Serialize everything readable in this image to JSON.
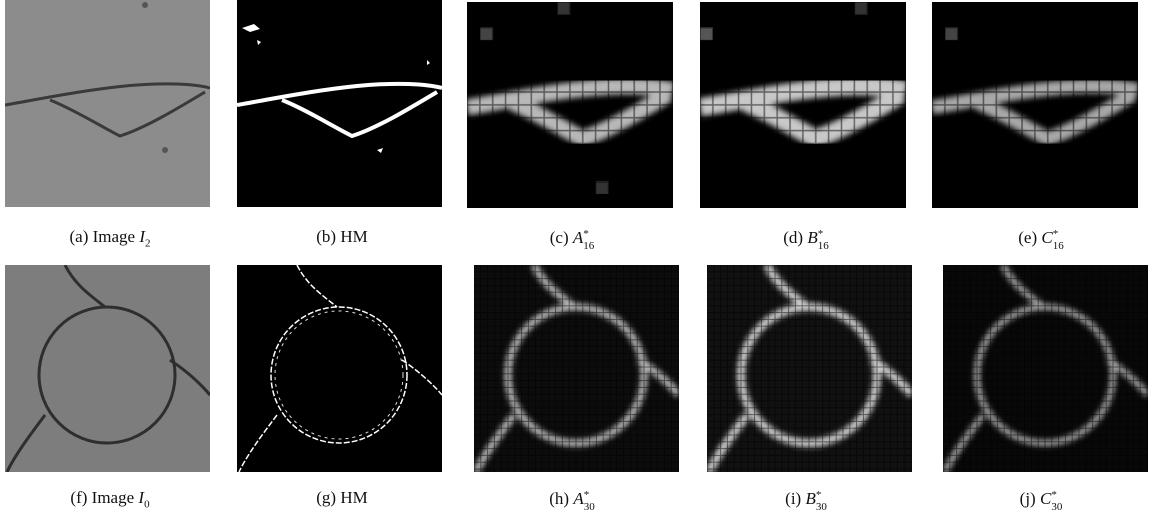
{
  "figures": [
    {
      "label": "(a)",
      "text": "Image",
      "sym": "I",
      "sub": "2"
    },
    {
      "label": "(b)",
      "text": "HM"
    },
    {
      "label": "(c)",
      "sym": "A",
      "sup": "*",
      "sub": "16"
    },
    {
      "label": "(d)",
      "sym": "B",
      "sup": "*",
      "sub": "16"
    },
    {
      "label": "(e)",
      "sym": "C",
      "sup": "*",
      "sub": "16"
    },
    {
      "label": "(f)",
      "text": "Image",
      "sym": "I",
      "sub": "0"
    },
    {
      "label": "(g)",
      "text": "HM"
    },
    {
      "label": "(h)",
      "sym": "A",
      "sup": "*",
      "sub": "30"
    },
    {
      "label": "(i)",
      "sym": "B",
      "sup": "*",
      "sub": "30"
    },
    {
      "label": "(j)",
      "sym": "C",
      "sup": "*",
      "sub": "30"
    }
  ]
}
